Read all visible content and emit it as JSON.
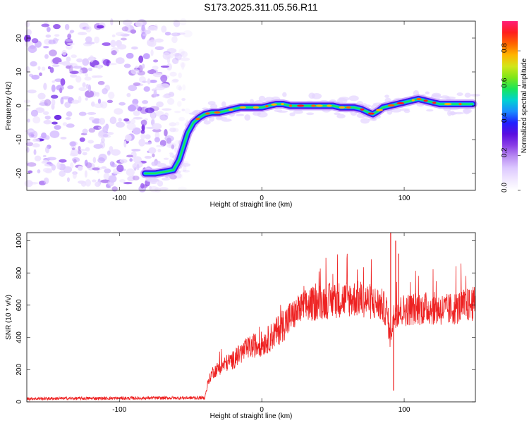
{
  "title": "S173.2025.311.05.56.R11",
  "chart_data": [
    {
      "type": "heatmap",
      "name": "spectrogram",
      "xlabel": "Height of straight line (km)",
      "ylabel": "Frequency (Hz)",
      "xlim": [
        -165,
        150
      ],
      "ylim": [
        -25,
        25
      ],
      "x_ticks": [
        -100,
        0,
        100
      ],
      "y_ticks": [
        20,
        10,
        0,
        -10,
        -20
      ],
      "noise_region_x": [
        -165,
        -52
      ],
      "ridge": {
        "x": [
          -82,
          -75,
          -68,
          -62,
          -58,
          -55,
          -52,
          -48,
          -44,
          -40,
          -35,
          -30,
          -25,
          -20,
          -15,
          -10,
          -5,
          0,
          5,
          10,
          15,
          20,
          25,
          30,
          35,
          40,
          45,
          50,
          55,
          60,
          65,
          70,
          75,
          78,
          82,
          85,
          90,
          95,
          100,
          105,
          110,
          115,
          120,
          125,
          130,
          135,
          140,
          148
        ],
        "freq": [
          -20,
          -20,
          -19.5,
          -19,
          -16,
          -12,
          -8,
          -5,
          -3.5,
          -2.5,
          -2,
          -2,
          -1.5,
          -1,
          -0.5,
          -0.5,
          -0.5,
          -0.5,
          0,
          0.5,
          0.5,
          0,
          0,
          0,
          0,
          0,
          0,
          0,
          -0.5,
          -0.5,
          -0.5,
          -1,
          -2,
          -2.5,
          -1.5,
          -0.5,
          0,
          0.5,
          1,
          1.5,
          2,
          1.5,
          1,
          0.5,
          0.5,
          0.5,
          0.5,
          0.5
        ]
      },
      "colorbar": {
        "label": "Normalized spectral amplitude",
        "range": [
          0,
          0.97
        ],
        "ticks": [
          0.0,
          0.2,
          0.4,
          0.6,
          0.8
        ],
        "tick_labels": [
          "0.0",
          "0.2",
          "0.4",
          "0.6",
          "0.8"
        ],
        "colors": [
          "#ffffff",
          "#f0e6ff",
          "#dcc7ff",
          "#b98cf2",
          "#8a3ee6",
          "#5a0ee0",
          "#2020ff",
          "#1a8cff",
          "#00d2d2",
          "#19e65a",
          "#7fe619",
          "#d2e619",
          "#ffb400",
          "#ff6400",
          "#ff1e1e",
          "#ff1e78"
        ]
      }
    },
    {
      "type": "line",
      "name": "snr",
      "xlabel": "Height of straight line (km)",
      "ylabel": "SNR (10 * v/v)",
      "xlim": [
        -165,
        150
      ],
      "ylim": [
        0,
        1050
      ],
      "x_ticks": [
        -100,
        0,
        100
      ],
      "y_ticks": [
        0,
        200,
        400,
        600,
        800,
        1000
      ],
      "color": "#ee2222",
      "trend": {
        "x": [
          -165,
          -40,
          -38,
          -35,
          -30,
          -25,
          -20,
          -15,
          -10,
          -5,
          0,
          5,
          10,
          15,
          20,
          25,
          30,
          40,
          50,
          60,
          70,
          80,
          84,
          88,
          90,
          92,
          94,
          96,
          100,
          110,
          120,
          130,
          140,
          150
        ],
        "snr": [
          20,
          25,
          110,
          180,
          210,
          240,
          260,
          300,
          330,
          350,
          360,
          390,
          430,
          480,
          520,
          560,
          590,
          620,
          630,
          640,
          640,
          610,
          600,
          560,
          400,
          500,
          560,
          560,
          570,
          580,
          580,
          570,
          590,
          610
        ]
      },
      "spikes": [
        {
          "x": 90.5,
          "snr": 1050
        },
        {
          "x": 92.5,
          "snr": 70
        },
        {
          "x": 94,
          "snr": 1000
        },
        {
          "x": 96,
          "snr": 920
        }
      ]
    }
  ]
}
